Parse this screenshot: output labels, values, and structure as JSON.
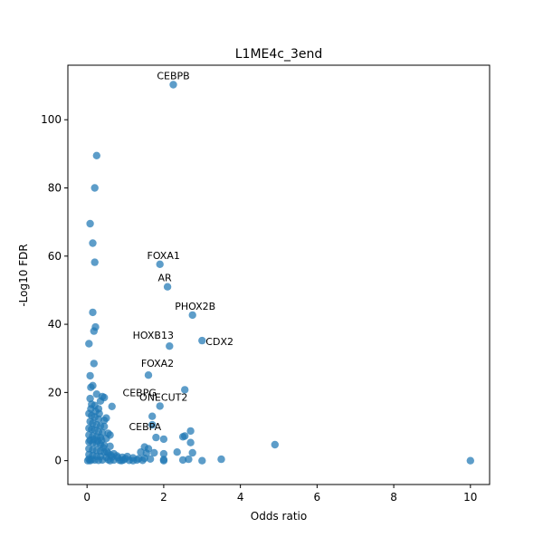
{
  "chart_data": {
    "type": "scatter",
    "title": "L1ME4c_3end",
    "xlabel": "Odds ratio",
    "ylabel": "-Log10 FDR",
    "xlim": [
      -0.5,
      10.5
    ],
    "ylim": [
      -7,
      116
    ],
    "xticks": [
      0,
      2,
      4,
      6,
      8,
      10
    ],
    "yticks": [
      0,
      20,
      40,
      60,
      80,
      100
    ],
    "xtick_labels": [
      "0",
      "2",
      "4",
      "6",
      "8",
      "10"
    ],
    "ytick_labels": [
      "0",
      "20",
      "40",
      "60",
      "80",
      "100"
    ],
    "grid": false,
    "color": "#1f77b4",
    "series": [
      {
        "points": [
          [
            2.25,
            110.3
          ],
          [
            0.25,
            89.5
          ],
          [
            0.2,
            80.0
          ],
          [
            0.08,
            69.5
          ],
          [
            0.15,
            63.8
          ],
          [
            0.2,
            58.2
          ],
          [
            1.9,
            57.6
          ],
          [
            2.1,
            51.0
          ],
          [
            2.75,
            42.7
          ],
          [
            0.15,
            43.5
          ],
          [
            0.22,
            39.2
          ],
          [
            0.18,
            38.0
          ],
          [
            0.05,
            34.3
          ],
          [
            3.0,
            35.2
          ],
          [
            2.15,
            33.6
          ],
          [
            0.18,
            28.5
          ],
          [
            1.6,
            25.1
          ],
          [
            0.08,
            24.9
          ],
          [
            0.15,
            22.0
          ],
          [
            0.1,
            21.5
          ],
          [
            1.9,
            16.0
          ],
          [
            2.55,
            20.8
          ],
          [
            0.25,
            19.5
          ],
          [
            0.4,
            18.8
          ],
          [
            0.45,
            18.5
          ],
          [
            0.35,
            17.5
          ],
          [
            0.08,
            18.2
          ],
          [
            0.12,
            16.5
          ],
          [
            0.2,
            16.2
          ],
          [
            0.3,
            15.2
          ],
          [
            0.65,
            15.9
          ],
          [
            1.7,
            13.0
          ],
          [
            1.7,
            10.5
          ],
          [
            0.05,
            13.8
          ],
          [
            0.12,
            13.2
          ],
          [
            0.2,
            12.8
          ],
          [
            0.3,
            12.2
          ],
          [
            0.45,
            11.8
          ],
          [
            0.5,
            12.5
          ],
          [
            0.08,
            11.5
          ],
          [
            0.15,
            11.0
          ],
          [
            0.25,
            10.5
          ],
          [
            0.35,
            10.2
          ],
          [
            0.45,
            10.0
          ],
          [
            0.05,
            9.5
          ],
          [
            0.12,
            9.2
          ],
          [
            0.2,
            9.0
          ],
          [
            0.3,
            8.5
          ],
          [
            0.4,
            8.2
          ],
          [
            0.55,
            8.0
          ],
          [
            2.7,
            8.7
          ],
          [
            0.05,
            7.5
          ],
          [
            0.15,
            7.2
          ],
          [
            0.25,
            7.0
          ],
          [
            0.35,
            6.8
          ],
          [
            0.5,
            6.5
          ],
          [
            1.8,
            6.8
          ],
          [
            2.0,
            6.3
          ],
          [
            2.55,
            7.2
          ],
          [
            2.5,
            7.0
          ],
          [
            2.7,
            5.3
          ],
          [
            4.9,
            4.7
          ],
          [
            0.05,
            5.5
          ],
          [
            0.15,
            5.2
          ],
          [
            0.25,
            5.0
          ],
          [
            0.35,
            4.8
          ],
          [
            0.45,
            4.5
          ],
          [
            0.6,
            4.2
          ],
          [
            1.5,
            4.0
          ],
          [
            1.6,
            3.5
          ],
          [
            0.05,
            3.5
          ],
          [
            0.15,
            3.2
          ],
          [
            0.25,
            3.0
          ],
          [
            0.35,
            2.8
          ],
          [
            0.45,
            2.5
          ],
          [
            0.55,
            2.2
          ],
          [
            0.7,
            2.0
          ],
          [
            1.4,
            2.5
          ],
          [
            1.55,
            2.2
          ],
          [
            1.75,
            2.3
          ],
          [
            2.0,
            2.0
          ],
          [
            2.35,
            2.5
          ],
          [
            2.75,
            2.3
          ],
          [
            0.05,
            1.8
          ],
          [
            0.15,
            1.5
          ],
          [
            0.25,
            1.3
          ],
          [
            0.35,
            1.2
          ],
          [
            0.5,
            1.0
          ],
          [
            0.65,
            1.1
          ],
          [
            0.8,
            0.9
          ],
          [
            1.0,
            0.6
          ],
          [
            1.2,
            0.8
          ],
          [
            1.35,
            0.6
          ],
          [
            1.5,
            0.7
          ],
          [
            1.65,
            0.5
          ],
          [
            2.0,
            0.3
          ],
          [
            2.5,
            0.2
          ],
          [
            2.65,
            0.4
          ],
          [
            3.0,
            0.0
          ],
          [
            3.5,
            0.4
          ],
          [
            10.0,
            0.0
          ],
          [
            0.05,
            0.5
          ],
          [
            0.12,
            0.3
          ],
          [
            0.2,
            0.2
          ],
          [
            0.3,
            0.1
          ],
          [
            0.4,
            0.2
          ],
          [
            0.55,
            0.3
          ],
          [
            0.7,
            0.2
          ],
          [
            0.85,
            0.1
          ],
          [
            0.95,
            0.2
          ],
          [
            1.1,
            0.1
          ],
          [
            1.3,
            0.2
          ],
          [
            1.45,
            0.1
          ],
          [
            2.0,
            0.0
          ],
          [
            0.02,
            0.0
          ],
          [
            0.08,
            0.0
          ],
          [
            0.6,
            0.0
          ],
          [
            0.9,
            0.0
          ],
          [
            1.2,
            0.0
          ],
          [
            0.08,
            6.0
          ],
          [
            0.18,
            6.2
          ],
          [
            0.28,
            5.8
          ],
          [
            0.38,
            6.0
          ],
          [
            0.6,
            7.5
          ],
          [
            0.42,
            3.8
          ],
          [
            0.52,
            2.6
          ],
          [
            0.62,
            1.6
          ],
          [
            0.78,
            1.4
          ],
          [
            0.92,
            1.0
          ],
          [
            1.05,
            1.2
          ],
          [
            0.32,
            13.8
          ],
          [
            0.22,
            14.5
          ],
          [
            0.1,
            15.2
          ]
        ]
      }
    ],
    "annotations": [
      {
        "text": "CEBPB",
        "x": 2.25,
        "y": 110.3
      },
      {
        "text": "FOXA1",
        "x": 1.9,
        "y": 57.6
      },
      {
        "text": "AR",
        "x": 2.1,
        "y": 51.0
      },
      {
        "text": "PHOX2B",
        "x": 2.75,
        "y": 42.7
      },
      {
        "text": "HOXB13",
        "x": 2.15,
        "y": 33.6
      },
      {
        "text": "CDX2",
        "x": 3.0,
        "y": 35.2
      },
      {
        "text": "FOXA2",
        "x": 1.6,
        "y": 25.1
      },
      {
        "text": "CEBPG",
        "x": 2.55,
        "y": 20.8
      },
      {
        "text": "ONECUT2",
        "x": 1.9,
        "y": 16.0
      },
      {
        "text": "CEBPA",
        "x": 0.55,
        "y": 10.0
      }
    ]
  }
}
